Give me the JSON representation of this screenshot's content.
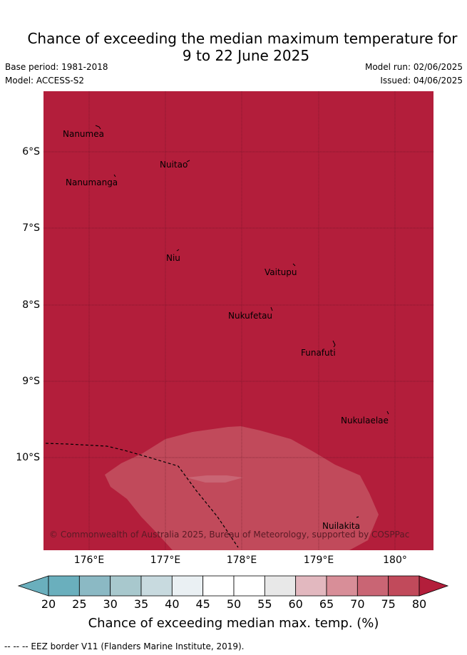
{
  "title_line1": "Chance of exceeding the median maximum temperature for",
  "title_line2": "9 to 22 June 2025",
  "base_period": "Base period: 1981-2018",
  "model": "Model: ACCESS-S2",
  "model_run": "Model run: 02/06/2025",
  "issued": "Issued: 04/06/2025",
  "map": {
    "lat_labels": [
      "6°S",
      "7°S",
      "8°S",
      "9°S",
      "10°S"
    ],
    "lon_labels": [
      "176°E",
      "177°E",
      "178°E",
      "179°E",
      "180°"
    ],
    "places": [
      {
        "name": "Nanumea"
      },
      {
        "name": "Nuitao"
      },
      {
        "name": "Nanumanga"
      },
      {
        "name": "Niu"
      },
      {
        "name": "Vaitupu"
      },
      {
        "name": "Nukufetau"
      },
      {
        "name": "Funafuti"
      },
      {
        "name": "Nukulaelae"
      },
      {
        "name": "Nuilakita"
      }
    ],
    "copyright": "© Commonwealth of Australia 2025, Bureau of Meteorology, supported by COSPPac",
    "background_color": "#b31e3b"
  },
  "colorbar": {
    "ticks": [
      "20",
      "25",
      "30",
      "35",
      "40",
      "45",
      "50",
      "55",
      "60",
      "65",
      "70",
      "75",
      "80"
    ],
    "colors": [
      "#6aafbd",
      "#8bb9c4",
      "#a8c8cd",
      "#c8dadf",
      "#eaf0f3",
      "#ffffff",
      "#ffffff",
      "#e8e8e8",
      "#e2b8bf",
      "#d88e98",
      "#c96574",
      "#c14a5b",
      "#b31e3b"
    ],
    "label": "Chance of exceeding median max. temp. (%)"
  },
  "footer": "-- -- -- EEZ border V11 (Flanders Marine Institute, 2019)."
}
